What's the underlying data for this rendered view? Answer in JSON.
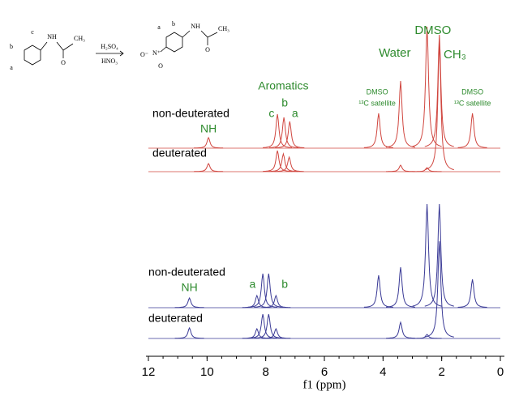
{
  "chart_data": {
    "type": "nmr",
    "xlabel": "f1 (ppm)",
    "xlim": [
      12.3,
      -0.15
    ],
    "xticks": [
      12,
      10,
      8,
      6,
      4,
      2,
      0
    ],
    "series": [
      {
        "name": "non-deuterated",
        "color": "#d0463f",
        "x": [
          9.95,
          7.6,
          7.38,
          7.18,
          4.15,
          3.4,
          2.5,
          2.08,
          0.95
        ],
        "values": [
          13,
          42,
          38,
          33,
          43,
          83,
          150,
          140,
          43
        ]
      },
      {
        "name": "deuterated",
        "color": "#d0463f",
        "x": [
          9.95,
          7.6,
          7.4,
          7.2,
          3.4,
          2.5,
          2.08
        ],
        "values": [
          10,
          26,
          22,
          18,
          8,
          5,
          160
        ]
      },
      {
        "name": "non-deuterated",
        "color": "#3a3a96",
        "x": [
          10.6,
          8.3,
          8.1,
          7.9,
          7.65,
          4.15,
          3.4,
          2.5,
          2.08,
          0.95
        ],
        "values": [
          12,
          15,
          42,
          42,
          15,
          40,
          50,
          128,
          128,
          35
        ]
      },
      {
        "name": "deuterated",
        "color": "#3a3a96",
        "x": [
          10.6,
          8.3,
          8.1,
          7.9,
          7.65,
          3.4,
          2.5,
          2.08
        ],
        "values": [
          13,
          12,
          30,
          30,
          12,
          20,
          5,
          120
        ]
      }
    ],
    "annotations": [
      "NH",
      "Aromatics",
      "c",
      "b",
      "a",
      "DMSO",
      "¹³C satellite",
      "Water",
      "DMSO",
      "CH₃",
      "DMSO",
      "¹³C satellite",
      "NH",
      "a",
      "b"
    ]
  },
  "scheme": {
    "reactant": [
      "c",
      "b",
      "a",
      "NH",
      "O",
      "CH₃"
    ],
    "reagents": [
      "H₂SO₄",
      "HNO₃"
    ],
    "product": [
      "a",
      "b",
      "NH",
      "O",
      "CH₃",
      "O⁻",
      "N⁺",
      "O"
    ]
  }
}
